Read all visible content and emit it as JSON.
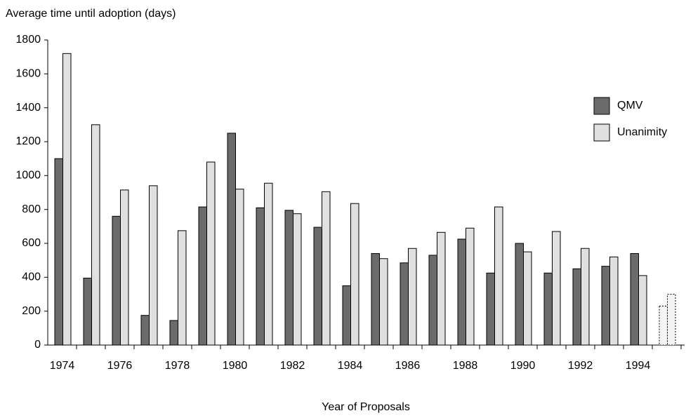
{
  "chart_data": {
    "type": "bar",
    "title": "Average time until adoption (days)",
    "xlabel": "Year of Proposals",
    "categories": [
      "1974",
      null,
      "1976",
      null,
      "1978",
      null,
      "1980",
      null,
      "1982",
      null,
      "1984",
      null,
      "1986",
      null,
      "1988",
      null,
      "1990",
      null,
      "1992",
      null,
      "1994",
      null
    ],
    "series": [
      {
        "name": "QMV",
        "color": "#6b6b6b",
        "values": [
          1100,
          395,
          760,
          175,
          145,
          815,
          1250,
          810,
          795,
          695,
          350,
          540,
          485,
          530,
          625,
          425,
          600,
          425,
          450,
          465,
          540,
          230
        ]
      },
      {
        "name": "Unanimity",
        "color": "#e0e0e0",
        "values": [
          1720,
          1300,
          915,
          940,
          675,
          1080,
          920,
          955,
          775,
          905,
          835,
          510,
          570,
          665,
          690,
          815,
          550,
          670,
          570,
          520,
          410,
          300
        ]
      }
    ],
    "dotted_last": true,
    "ylim": [
      0,
      1800
    ],
    "yticks": [
      0,
      200,
      400,
      600,
      800,
      1000,
      1200,
      1400,
      1600,
      1800
    ],
    "grid": false,
    "legend": "right"
  }
}
